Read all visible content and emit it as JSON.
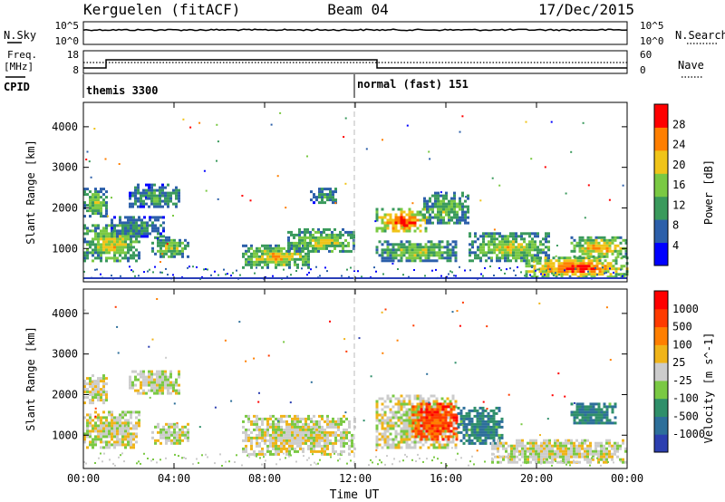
{
  "header": {
    "station": "Kerguelen (fitACF)",
    "beam": "Beam 04",
    "date": "17/Dec/2015"
  },
  "noise_panel": {
    "left_label": "N.Sky",
    "right_label": "N.Search",
    "left_ticks": [
      "10^5",
      "10^0"
    ],
    "right_ticks": [
      "10^5",
      "10^0"
    ]
  },
  "freq_panel": {
    "left_label_line1": "Freq.",
    "left_label_line2": "[MHz]",
    "left_ticks": [
      "18",
      "8"
    ],
    "right_label": "Nave",
    "right_ticks": [
      "60",
      "0"
    ],
    "cpid_label": "CPID"
  },
  "cpid": [
    {
      "start_hour": 0,
      "label": "themis 3300"
    },
    {
      "start_hour": 12,
      "label": "normal (fast) 151"
    }
  ],
  "chart_data": [
    {
      "type": "heatmap",
      "title": "",
      "xlabel": "Time UT",
      "ylabel": "Slant Range [km]",
      "x_range_hours": [
        0,
        24
      ],
      "x_tick_labels": [
        "00:00",
        "04:00",
        "08:00",
        "12:00",
        "16:00",
        "20:00",
        "00:00"
      ],
      "y_range_km": [
        180,
        4600
      ],
      "y_tick_labels": [
        "1000",
        "2000",
        "3000",
        "4000"
      ],
      "colorbar_label": "Power [dB]",
      "colorbar_ticks": [
        "4",
        "8",
        "12",
        "16",
        "20",
        "24",
        "28"
      ],
      "colors": [
        "#0000ff",
        "#2c5faa",
        "#3a9a5c",
        "#7ac943",
        "#f0c419",
        "#ff7f00",
        "#ff0000"
      ],
      "features": [
        {
          "start": 0.0,
          "end": 1.0,
          "r_min": 1800,
          "r_max": 2500,
          "level": 0.5
        },
        {
          "start": 0.0,
          "end": 2.5,
          "r_min": 700,
          "r_max": 1600,
          "level": 0.6
        },
        {
          "start": 1.2,
          "end": 3.5,
          "r_min": 1300,
          "r_max": 1800,
          "level": 0.3
        },
        {
          "start": 2.0,
          "end": 4.2,
          "r_min": 2000,
          "r_max": 2600,
          "level": 0.35
        },
        {
          "start": 3.0,
          "end": 4.6,
          "r_min": 800,
          "r_max": 1300,
          "level": 0.5
        },
        {
          "start": 7.0,
          "end": 10.0,
          "r_min": 550,
          "r_max": 1100,
          "level": 0.65
        },
        {
          "start": 9.0,
          "end": 12.0,
          "r_min": 900,
          "r_max": 1500,
          "level": 0.55
        },
        {
          "start": 10.0,
          "end": 11.2,
          "r_min": 2100,
          "r_max": 2500,
          "level": 0.3
        },
        {
          "start": 12.9,
          "end": 15.2,
          "r_min": 1400,
          "r_max": 2000,
          "level": 0.9
        },
        {
          "start": 12.9,
          "end": 16.5,
          "r_min": 700,
          "r_max": 1200,
          "level": 0.5
        },
        {
          "start": 15.0,
          "end": 17.0,
          "r_min": 1600,
          "r_max": 2400,
          "level": 0.45
        },
        {
          "start": 17.0,
          "end": 20.5,
          "r_min": 700,
          "r_max": 1400,
          "level": 0.55
        },
        {
          "start": 19.5,
          "end": 24.0,
          "r_min": 300,
          "r_max": 800,
          "level": 0.9
        },
        {
          "start": 21.5,
          "end": 24.0,
          "r_min": 800,
          "r_max": 1300,
          "level": 0.7
        }
      ]
    },
    {
      "type": "heatmap",
      "title": "",
      "xlabel": "Time UT",
      "ylabel": "Slant Range [km]",
      "x_range_hours": [
        0,
        24
      ],
      "x_tick_labels": [
        "00:00",
        "04:00",
        "08:00",
        "12:00",
        "16:00",
        "20:00",
        "00:00"
      ],
      "y_range_km": [
        180,
        4600
      ],
      "y_tick_labels": [
        "1000",
        "2000",
        "3000",
        "4000"
      ],
      "colorbar_label": "Velocity [m s^-1]",
      "colorbar_ticks": [
        "1000",
        "500",
        "100",
        "25",
        "-25",
        "-100",
        "-500",
        "-1000"
      ],
      "colors": [
        "#2c3fb0",
        "#2d6f9a",
        "#2f8f6a",
        "#7ac943",
        "#cccccc",
        "#f0b419",
        "#ff7f00",
        "#ff3b00",
        "#ff0000"
      ],
      "features": [
        {
          "start": 0.0,
          "end": 1.0,
          "r_min": 1800,
          "r_max": 2500,
          "level": 0.5
        },
        {
          "start": 0.0,
          "end": 2.5,
          "r_min": 700,
          "r_max": 1600,
          "level": 0.5
        },
        {
          "start": 2.0,
          "end": 4.2,
          "r_min": 2000,
          "r_max": 2600,
          "level": 0.5
        },
        {
          "start": 3.0,
          "end": 4.6,
          "r_min": 800,
          "r_max": 1300,
          "level": 0.5
        },
        {
          "start": 7.0,
          "end": 12.0,
          "r_min": 550,
          "r_max": 1500,
          "level": 0.5
        },
        {
          "start": 12.9,
          "end": 16.5,
          "r_min": 700,
          "r_max": 2000,
          "level": 0.5
        },
        {
          "start": 14.5,
          "end": 16.5,
          "r_min": 900,
          "r_max": 1800,
          "level": 0.85
        },
        {
          "start": 16.5,
          "end": 18.5,
          "r_min": 800,
          "r_max": 1700,
          "level": 0.2
        },
        {
          "start": 18.0,
          "end": 24.0,
          "r_min": 300,
          "r_max": 900,
          "level": 0.5
        },
        {
          "start": 21.5,
          "end": 23.5,
          "r_min": 1300,
          "r_max": 1800,
          "level": 0.2
        }
      ]
    }
  ]
}
